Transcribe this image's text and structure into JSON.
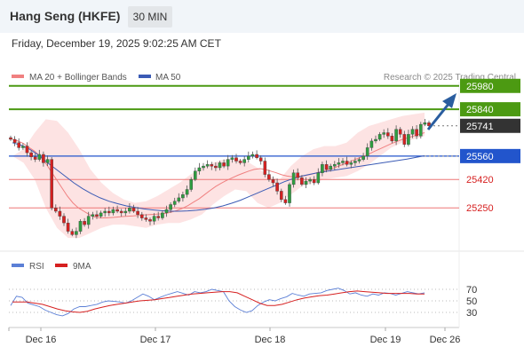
{
  "header": {
    "title": "Hang Seng (HKFE)",
    "interval": "30 MIN",
    "datetime": "Friday, December 19, 2025 9:02:25 AM CET"
  },
  "legend": {
    "ma20_label": "MA 20 + Bollinger Bands",
    "ma50_label": "MA 50",
    "credit": "Research © 2025 Trading Central",
    "rsi_label": "RSI",
    "rsi_ma_label": "9MA"
  },
  "colors": {
    "ma20": "#f08080",
    "ma50": "#3b5bb5",
    "bollinger_fill": "#fde3e3",
    "resistance": "#4c9a12",
    "support_major": "#2255cc",
    "support_minor": "#ee7777",
    "current": "#333333",
    "arrow": "#2a5d9f",
    "rsi": "#5b7fd6",
    "rsi_ma": "#d62020"
  },
  "chart_data": [
    {
      "type": "candlestick",
      "title": "Hang Seng (HKFE)",
      "interval": "30 MIN",
      "x_tick_labels": [
        "Dec 16",
        "Dec 17",
        "Dec 18",
        "Dec 19",
        "Dec 26"
      ],
      "y_range": [
        25060,
        26000
      ],
      "current_price": 25741,
      "levels": [
        {
          "value": 25980,
          "kind": "resistance",
          "label": "25980"
        },
        {
          "value": 25840,
          "kind": "resistance",
          "label": "25840"
        },
        {
          "value": 25741,
          "kind": "current",
          "label": "25741"
        },
        {
          "value": 25560,
          "kind": "support",
          "label": "25560"
        },
        {
          "value": 25420,
          "kind": "support-minor",
          "label": "25420"
        },
        {
          "value": 25250,
          "kind": "support-minor",
          "label": "25250"
        }
      ],
      "close_series": [
        25660,
        25640,
        25610,
        25620,
        25580,
        25555,
        25540,
        25570,
        25520,
        25540,
        25250,
        25230,
        25200,
        25160,
        25110,
        25090,
        25110,
        25170,
        25150,
        25200,
        25210,
        25200,
        25220,
        25230,
        25220,
        25240,
        25230,
        25220,
        25230,
        25250,
        25230,
        25210,
        25190,
        25180,
        25170,
        25200,
        25190,
        25220,
        25240,
        25270,
        25290,
        25310,
        25330,
        25360,
        25420,
        25470,
        25490,
        25500,
        25510,
        25500,
        25490,
        25520,
        25500,
        25540,
        25550,
        25530,
        25520,
        25540,
        25560,
        25570,
        25550,
        25530,
        25450,
        25420,
        25400,
        25350,
        25300,
        25280,
        25390,
        25460,
        25430,
        25390,
        25410,
        25420,
        25400,
        25460,
        25510,
        25480,
        25500,
        25510,
        25520,
        25530,
        25510,
        25520,
        25530,
        25540,
        25560,
        25610,
        25650,
        25660,
        25690,
        25700,
        25680,
        25650,
        25720,
        25690,
        25630,
        25690,
        25720,
        25680,
        25750,
        25760,
        25741
      ],
      "ma20_series": [
        25660,
        25650,
        25635,
        25612,
        25590,
        25560,
        25520,
        25470,
        25420,
        25370,
        25320,
        25280,
        25250,
        25230,
        25210,
        25195,
        25190,
        25190,
        25192,
        25195,
        25198,
        25200,
        25202,
        25205,
        25208,
        25210,
        25212,
        25214,
        25218,
        25225,
        25235,
        25248,
        25265,
        25285,
        25305,
        25330,
        25355,
        25378,
        25398,
        25415,
        25430,
        25445,
        25458,
        25470,
        25480,
        25485,
        25480,
        25470,
        25460,
        25448,
        25440,
        25436,
        25438,
        25442,
        25448,
        25456,
        25465,
        25474,
        25484,
        25495,
        25508,
        25520,
        25534,
        25548,
        25560,
        25574,
        25590,
        25605,
        25620,
        25635,
        25648,
        25660,
        25670,
        25680,
        25690,
        25700
      ],
      "ma50_series": [
        25640,
        25625,
        25600,
        25565,
        25520,
        25480,
        25440,
        25400,
        25365,
        25335,
        25310,
        25290,
        25275,
        25262,
        25252,
        25244,
        25238,
        25233,
        25230,
        25230,
        25232,
        25236,
        25242,
        25250,
        25262,
        25278,
        25296,
        25318,
        25340,
        25362,
        25384,
        25406,
        25425,
        25440,
        25452,
        25462,
        25470,
        25478,
        25486,
        25494,
        25502,
        25510,
        25518,
        25526,
        25534,
        25542,
        25552,
        25562
      ],
      "bollinger_upper": [
        25560,
        25600,
        25700,
        25780,
        25770,
        25700,
        25600,
        25480,
        25400,
        25340,
        25300,
        25280,
        25290,
        25320,
        25360,
        25400,
        25450,
        25490,
        25520,
        25540,
        25545,
        25530,
        25490,
        25440,
        25420,
        25500,
        25560,
        25600,
        25620,
        25620,
        25640,
        25700,
        25740,
        25760,
        25780,
        25800,
        25810,
        25820
      ],
      "bollinger_lower": [
        25560,
        25520,
        25420,
        25250,
        25130,
        25070,
        25070,
        25100,
        25130,
        25150,
        25150,
        25140,
        25130,
        25150,
        25160,
        25160,
        25180,
        25210,
        25270,
        25320,
        25360,
        25350,
        25280,
        25250,
        25280,
        25330,
        25380,
        25400,
        25420,
        25430,
        25440,
        25470,
        25510,
        25560,
        25610,
        25640,
        25660,
        25680
      ]
    },
    {
      "type": "line",
      "title": "RSI",
      "y_ticks": [
        70,
        50,
        30
      ],
      "y_range": [
        10,
        90
      ],
      "series": [
        {
          "name": "RSI",
          "values": [
            42,
            58,
            56,
            46,
            43,
            40,
            34,
            30,
            26,
            24,
            28,
            36,
            40,
            40,
            42,
            44,
            48,
            50,
            49,
            48,
            46,
            50,
            56,
            62,
            58,
            52,
            56,
            60,
            63,
            66,
            63,
            60,
            66,
            64,
            66,
            70,
            68,
            66,
            50,
            40,
            34,
            30,
            33,
            42,
            48,
            52,
            50,
            54,
            57,
            63,
            60,
            58,
            62,
            63,
            64,
            68,
            70,
            72,
            68,
            62,
            64,
            60,
            58,
            62,
            60,
            64,
            63,
            60,
            63,
            66,
            64,
            62,
            64
          ]
        },
        {
          "name": "9MA",
          "values": [
            48,
            48,
            48,
            46,
            44,
            40,
            36,
            33,
            31,
            30,
            32,
            36,
            39,
            42,
            44,
            46,
            48,
            50,
            51,
            52,
            54,
            56,
            58,
            60,
            62,
            63,
            64,
            65,
            66,
            66,
            64,
            58,
            52,
            46,
            42,
            42,
            44,
            48,
            52,
            55,
            57,
            59,
            60,
            62,
            64,
            66,
            67,
            66,
            65,
            64,
            63,
            63,
            63,
            63,
            62,
            62
          ]
        }
      ]
    }
  ]
}
